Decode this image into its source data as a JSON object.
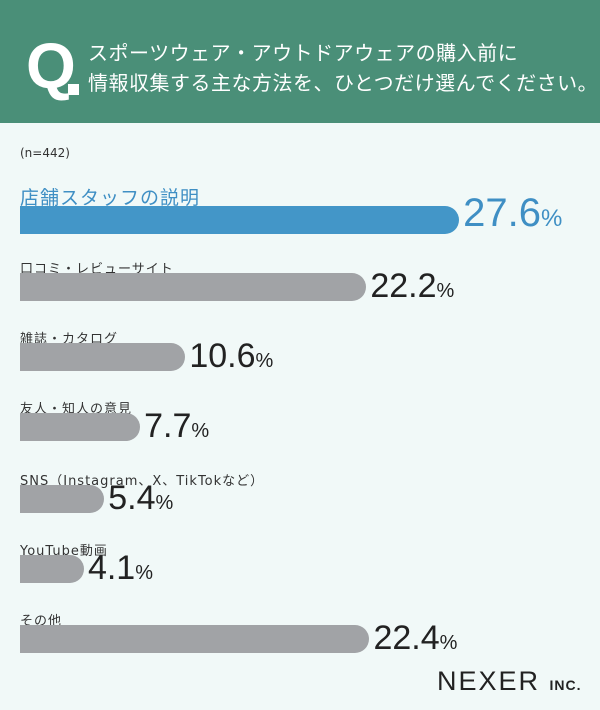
{
  "header": {
    "q_mark": "Q",
    "line1": "スポーツウェア・アウトドアウェアの購入前に",
    "line2": "情報収集する主な方法を、ひとつだけ選んでください。"
  },
  "chart_data": {
    "type": "bar",
    "orientation": "horizontal",
    "note": "(n=442)",
    "categories": [
      "店舗スタッフの説明",
      "口コミ・レビューサイト",
      "雑誌・カタログ",
      "友人・知人の意見",
      "SNS（Instagram、X、TikTokなど）",
      "YouTube動画",
      "その他"
    ],
    "values": [
      27.6,
      22.2,
      10.6,
      7.7,
      5.4,
      4.1,
      22.4
    ],
    "value_labels": [
      "27.6",
      "22.2",
      "10.6",
      "7.7",
      "5.4",
      "4.1",
      "22.4"
    ],
    "unit": "%",
    "highlight_index": 0,
    "colors": {
      "highlight": "#4396c8",
      "default": "#a1a3a6",
      "header": "#4a8f78",
      "background": "#f1f9f8"
    }
  },
  "footer": {
    "logo_main": "NEXER",
    "logo_sub": "INC."
  }
}
